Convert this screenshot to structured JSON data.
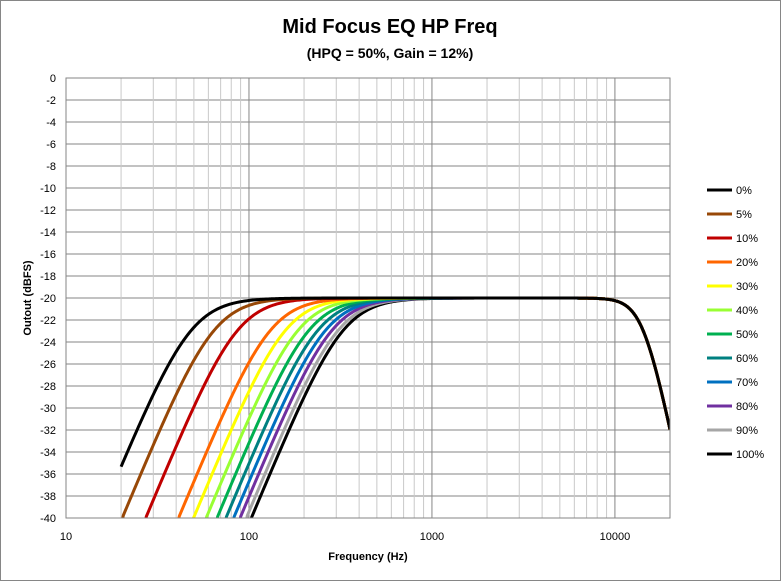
{
  "chart_data": {
    "type": "line",
    "title": "Mid Focus EQ HP Freq",
    "subtitle": "(HPQ = 50%, Gain = 12%)",
    "xlabel": "Frequency (Hz)",
    "ylabel": "Outout (dBFS)",
    "xscale": "log",
    "xlim": [
      10,
      20000
    ],
    "ylim": [
      -40,
      0
    ],
    "x_ticks": [
      10,
      100,
      1000,
      10000
    ],
    "x_tick_labels": [
      "10",
      "100",
      "1000",
      "10000"
    ],
    "y_ticks": [
      0,
      -2,
      -4,
      -6,
      -8,
      -10,
      -12,
      -14,
      -16,
      -18,
      -20,
      -22,
      -24,
      -26,
      -28,
      -30,
      -32,
      -34,
      -36,
      -38,
      -40
    ],
    "y_tick_labels": [
      "0",
      "-2",
      "-4",
      "-6",
      "-8",
      "-10",
      "-12",
      "-14",
      "-16",
      "-18",
      "-20",
      "-22",
      "-24",
      "-26",
      "-28",
      "-30",
      "-32",
      "-34",
      "-36",
      "-38",
      "-40"
    ],
    "grid": true,
    "legend_position": "right",
    "passband_level": -20,
    "highpass_order": 2,
    "lowpass_corner_hz": 14300,
    "lowpass_order": 4,
    "series": [
      {
        "name": "0%",
        "color": "#000000",
        "cutoff_hz": 48
      },
      {
        "name": "5%",
        "color": "#984807",
        "cutoff_hz": 64
      },
      {
        "name": "10%",
        "color": "#C00000",
        "cutoff_hz": 86
      },
      {
        "name": "20%",
        "color": "#FF6600",
        "cutoff_hz": 130
      },
      {
        "name": "30%",
        "color": "#FFFF00",
        "cutoff_hz": 157
      },
      {
        "name": "40%",
        "color": "#99FF33",
        "cutoff_hz": 184
      },
      {
        "name": "50%",
        "color": "#00B050",
        "cutoff_hz": 211
      },
      {
        "name": "60%",
        "color": "#008080",
        "cutoff_hz": 236
      },
      {
        "name": "70%",
        "color": "#0070C0",
        "cutoff_hz": 260
      },
      {
        "name": "80%",
        "color": "#7030A0",
        "cutoff_hz": 282
      },
      {
        "name": "90%",
        "color": "#A6A6A6",
        "cutoff_hz": 305
      },
      {
        "name": "100%",
        "color": "#000000",
        "cutoff_hz": 325
      }
    ]
  }
}
